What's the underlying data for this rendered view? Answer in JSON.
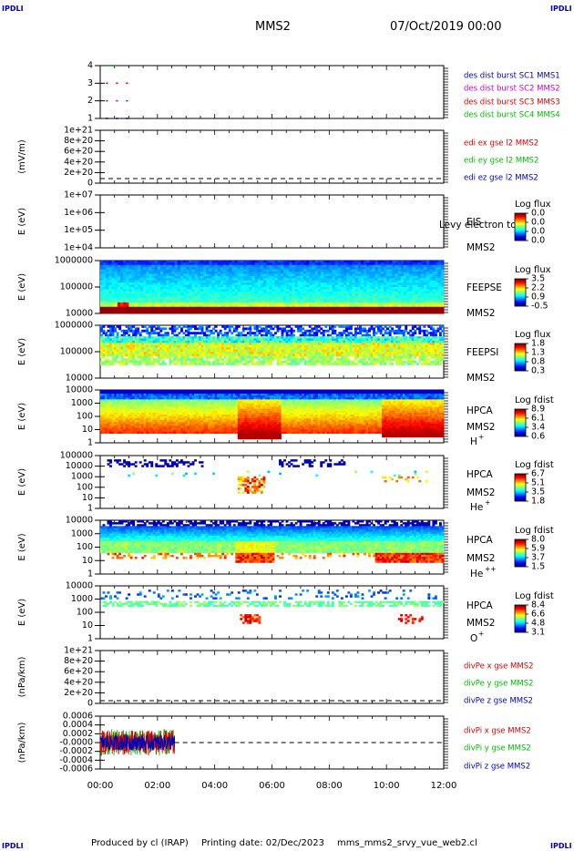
{
  "header": {
    "corner_left": "IPDLI",
    "corner_right": "IPDLI",
    "mission": "MMS2",
    "datetime": "07/Oct/2019 00:00",
    "footer_left": "IPDLI",
    "footer_right": "IPDLI",
    "footer_credit": "Produced by cl (IRAP)",
    "footer_date": "Printing date: 02/Dec/2023",
    "footer_file": "mms_mms2_srvy_vue_web2.cl"
  },
  "colors": {
    "red": "#dd0000",
    "magenta": "#cc00cc",
    "green": "#00bb00",
    "blue": "#0000bb",
    "dashed": "#000000"
  },
  "chart_data": {
    "type": "multi-panel time series and spectrograms",
    "x_ticks": [
      "00:00",
      "02:00",
      "04:00",
      "06:00",
      "08:00",
      "10:00",
      "12:00"
    ],
    "x_range_hours": [
      0,
      12
    ],
    "panels": [
      {
        "id": "p1",
        "type": "scatter",
        "y_ticks": [
          "1",
          "2",
          "3",
          "4"
        ],
        "legend": [
          {
            "label": "des dist burst SC1 MMS1",
            "color": "#0000bb"
          },
          {
            "label": "des dist burst SC2 MMS2",
            "color": "#cc00cc"
          },
          {
            "label": "des dist burst SC3 MMS3",
            "color": "#dd0000"
          },
          {
            "label": "des dist burst SC4 MMS4",
            "color": "#00bb00"
          }
        ],
        "points": [
          {
            "t": 0.25,
            "y": 4
          },
          {
            "t": 0.5,
            "y": 4
          },
          {
            "t": 0.2,
            "y": 3
          },
          {
            "t": 0.55,
            "y": 3
          },
          {
            "t": 0.9,
            "y": 3
          },
          {
            "t": 0.2,
            "y": 2
          },
          {
            "t": 0.55,
            "y": 2
          },
          {
            "t": 0.9,
            "y": 2
          },
          {
            "t": 0.2,
            "y": 1
          },
          {
            "t": 0.55,
            "y": 1
          },
          {
            "t": 0.9,
            "y": 1
          }
        ]
      },
      {
        "id": "p2",
        "type": "line",
        "ylabel": "(mV/m)",
        "y_ticks": [
          "0",
          "2e+20",
          "4e+20",
          "6e+20",
          "8e+20",
          "1e+21"
        ],
        "legend": [
          {
            "label": "edi ex gse l2 MMS2",
            "color": "#dd0000"
          },
          {
            "label": "edi ey gse l2 MMS2",
            "color": "#00bb00"
          },
          {
            "label": "edi ez gse l2 MMS2",
            "color": "#0000bb"
          }
        ],
        "zero_line": true
      },
      {
        "id": "p3",
        "type": "heatmap",
        "ylabel": "E (eV)",
        "y_ticks": [
          "1e+04",
          "1e+05",
          "1e+06",
          "1e+07"
        ],
        "instrument": "EIS",
        "instrument_sub": "Levy electron to",
        "spacecraft": "MMS2",
        "colorbar_title": "Log flux",
        "colorbar_ticks": [
          "0.0",
          "0.0",
          "0.0",
          "0.0"
        ]
      },
      {
        "id": "p4",
        "type": "heatmap",
        "ylabel": "E (eV)",
        "y_ticks": [
          "10000",
          "100000",
          "1000000"
        ],
        "instrument": "FEEPSE",
        "spacecraft": "MMS2",
        "colorbar_title": "Log flux",
        "colorbar_ticks": [
          "3.5",
          "2.2",
          "0.9",
          "-0.5"
        ]
      },
      {
        "id": "p5",
        "type": "heatmap",
        "ylabel": "E (eV)",
        "y_ticks": [
          "10000",
          "100000",
          "1000000"
        ],
        "instrument": "FEEPSI",
        "spacecraft": "MMS2",
        "colorbar_title": "Log flux",
        "colorbar_ticks": [
          "1.8",
          "1.3",
          "0.8",
          "0.3"
        ]
      },
      {
        "id": "p6",
        "type": "heatmap",
        "ylabel": "E (eV)",
        "y_ticks": [
          "1",
          "10",
          "100",
          "1000",
          "10000"
        ],
        "instrument": "HPCA",
        "spacecraft": "MMS2",
        "species": "H",
        "species_sup": "+",
        "colorbar_title": "Log fdist",
        "colorbar_ticks": [
          "8.9",
          "6.1",
          "3.4",
          "0.6"
        ]
      },
      {
        "id": "p7",
        "type": "heatmap",
        "ylabel": "E (eV)",
        "y_ticks": [
          "1",
          "10",
          "100",
          "1000",
          "10000",
          "100000"
        ],
        "instrument": "HPCA",
        "spacecraft": "MMS2",
        "species": "He",
        "species_sup": "+",
        "colorbar_title": "Log fdist",
        "colorbar_ticks": [
          "6.7",
          "5.1",
          "3.5",
          "1.8"
        ]
      },
      {
        "id": "p8",
        "type": "heatmap",
        "ylabel": "E (eV)",
        "y_ticks": [
          "1",
          "10",
          "100",
          "1000",
          "10000"
        ],
        "instrument": "HPCA",
        "spacecraft": "MMS2",
        "species": "He",
        "species_sup": "++",
        "colorbar_title": "Log fdist",
        "colorbar_ticks": [
          "8.0",
          "5.9",
          "3.7",
          "1.5"
        ]
      },
      {
        "id": "p9",
        "type": "heatmap",
        "ylabel": "E (eV)",
        "y_ticks": [
          "1",
          "10",
          "100",
          "1000",
          "10000"
        ],
        "instrument": "HPCA",
        "spacecraft": "MMS2",
        "species": "O",
        "species_sup": "+",
        "colorbar_title": "Log fdist",
        "colorbar_ticks": [
          "8.4",
          "6.6",
          "4.8",
          "3.1"
        ]
      },
      {
        "id": "p10",
        "type": "line",
        "ylabel": "(nPa/km)",
        "y_ticks": [
          "0",
          "2e+20",
          "4e+20",
          "6e+20",
          "8e+20",
          "1e+21"
        ],
        "legend": [
          {
            "label": "divPe x gse MMS2",
            "color": "#dd0000"
          },
          {
            "label": "divPe y gse MMS2",
            "color": "#00bb00"
          },
          {
            "label": "divPe z gse MMS2",
            "color": "#0000bb"
          }
        ],
        "zero_line": true
      },
      {
        "id": "p11",
        "type": "line",
        "ylabel": "(nPa/km)",
        "y_ticks": [
          "-0.0006",
          "-0.0004",
          "-0.0002",
          "-0.0000",
          "0.0002",
          "0.0004",
          "0.0006"
        ],
        "y_range": [
          -0.0006,
          0.0006
        ],
        "legend": [
          {
            "label": "divPi x gse MMS2",
            "color": "#dd0000"
          },
          {
            "label": "divPi y gse MMS2",
            "color": "#00bb00"
          },
          {
            "label": "divPi z gse MMS2",
            "color": "#0000bb"
          }
        ],
        "data_end_hours": 2.6,
        "zero_line": true
      }
    ]
  }
}
